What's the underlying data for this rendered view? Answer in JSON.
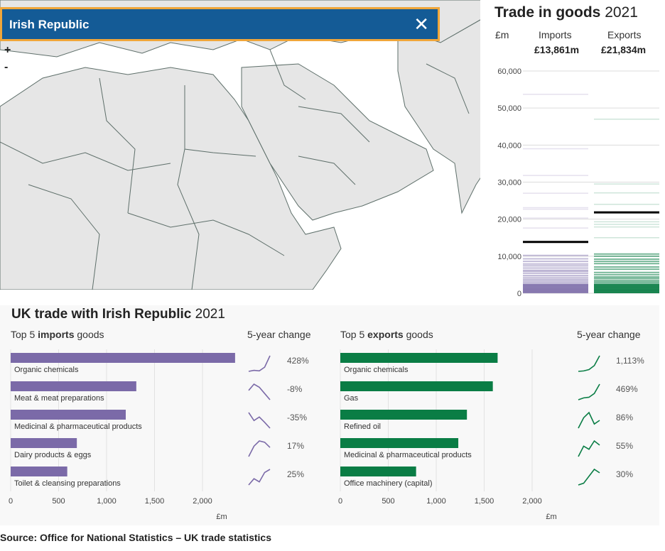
{
  "header": {
    "country": "Irish Republic",
    "close_label": "✕"
  },
  "map_controls": {
    "zoom_in": "+",
    "zoom_out": "-"
  },
  "goods_panel": {
    "title_bold": "Trade in goods",
    "title_year": "2021",
    "unit": "£m",
    "imports_label": "Imports",
    "exports_label": "Exports",
    "imports_total": "£13,861m",
    "exports_total": "£21,834m"
  },
  "bottom": {
    "title_bold": "UK trade with Irish Republic",
    "title_year": "2021",
    "imports_sub": {
      "pre": "Top 5 ",
      "bold": "imports",
      "post": " goods"
    },
    "exports_sub": {
      "pre": "Top 5 ",
      "bold": "exports",
      "post": " goods"
    },
    "change_label": "5-year change",
    "unit": "£m"
  },
  "source": "Source: Office for National Statistics – UK trade statistics",
  "colors": {
    "imports": "#7b6aa8",
    "exports": "#0a7d45",
    "header_bg": "#145b96",
    "header_border": "#f0a63a",
    "map_land": "#e6e6e6",
    "map_border": "#5e6f6a"
  },
  "chart_data": [
    {
      "type": "line",
      "name": "goods-strip",
      "title": "Trade in goods 2021",
      "ylabel": "£m",
      "ylim": [
        0,
        60000
      ],
      "yticks": [
        "0",
        "10,000",
        "20,000",
        "30,000",
        "40,000",
        "50,000",
        "60,000"
      ],
      "yticks_values": [
        0,
        10000,
        20000,
        30000,
        40000,
        50000,
        60000
      ],
      "imports_highlight": 13861,
      "exports_highlight": 21834,
      "imports_other": [
        53700,
        39000,
        31800,
        27000,
        23100,
        22700,
        20300,
        17600,
        10200,
        9300,
        8600,
        7900,
        7400,
        6800,
        6200,
        5900,
        5400,
        4800,
        4300,
        3800,
        3400,
        3000,
        2600,
        2200,
        1900,
        1500,
        1200,
        900,
        600,
        300
      ],
      "exports_other": [
        47000,
        29500,
        27100,
        24000,
        19300,
        18600,
        17900,
        15000,
        10600,
        10000,
        9200,
        8600,
        8000,
        7100,
        6500,
        5600,
        5000,
        4400,
        4000,
        3500,
        3100,
        2700,
        2300,
        1900,
        1500,
        1100,
        800,
        500,
        200
      ]
    },
    {
      "type": "bar",
      "name": "top5-imports",
      "xlabel": "£m",
      "xlim": [
        0,
        2400
      ],
      "xticks": [
        "0",
        "500",
        "1,000",
        "1,500",
        "2,000"
      ],
      "categories": [
        "Organic chemicals",
        "Meat & meat preparations",
        "Medicinal & pharmaceutical products",
        "Dairy products & eggs",
        "Toilet & cleansing preparations"
      ],
      "values": [
        2340,
        1310,
        1200,
        690,
        590
      ],
      "changes": [
        "428%",
        "-8%",
        "-35%",
        "17%",
        "25%"
      ],
      "sparklines": [
        [
          10,
          12,
          11,
          18,
          40
        ],
        [
          30,
          32,
          31,
          29,
          27
        ],
        [
          40,
          22,
          30,
          18,
          5
        ],
        [
          20,
          28,
          32,
          31,
          27
        ],
        [
          20,
          22,
          21,
          24,
          25
        ]
      ]
    },
    {
      "type": "bar",
      "name": "top5-exports",
      "xlabel": "£m",
      "xlim": [
        0,
        2000
      ],
      "xticks": [
        "0",
        "500",
        "1,000",
        "1,500",
        "2,000"
      ],
      "categories": [
        "Organic chemicals",
        "Gas",
        "Refined oil",
        "Medicinal & pharmaceutical products",
        "Office machinery (capital)"
      ],
      "values": [
        1640,
        1590,
        1320,
        1230,
        790
      ],
      "changes": [
        "1,113%",
        "469%",
        "86%",
        "55%",
        "30%"
      ],
      "sparklines": [
        [
          5,
          6,
          9,
          18,
          40
        ],
        [
          5,
          8,
          9,
          15,
          30
        ],
        [
          10,
          30,
          40,
          18,
          25
        ],
        [
          15,
          25,
          22,
          30,
          26
        ],
        [
          15,
          16,
          20,
          24,
          22
        ]
      ]
    }
  ]
}
